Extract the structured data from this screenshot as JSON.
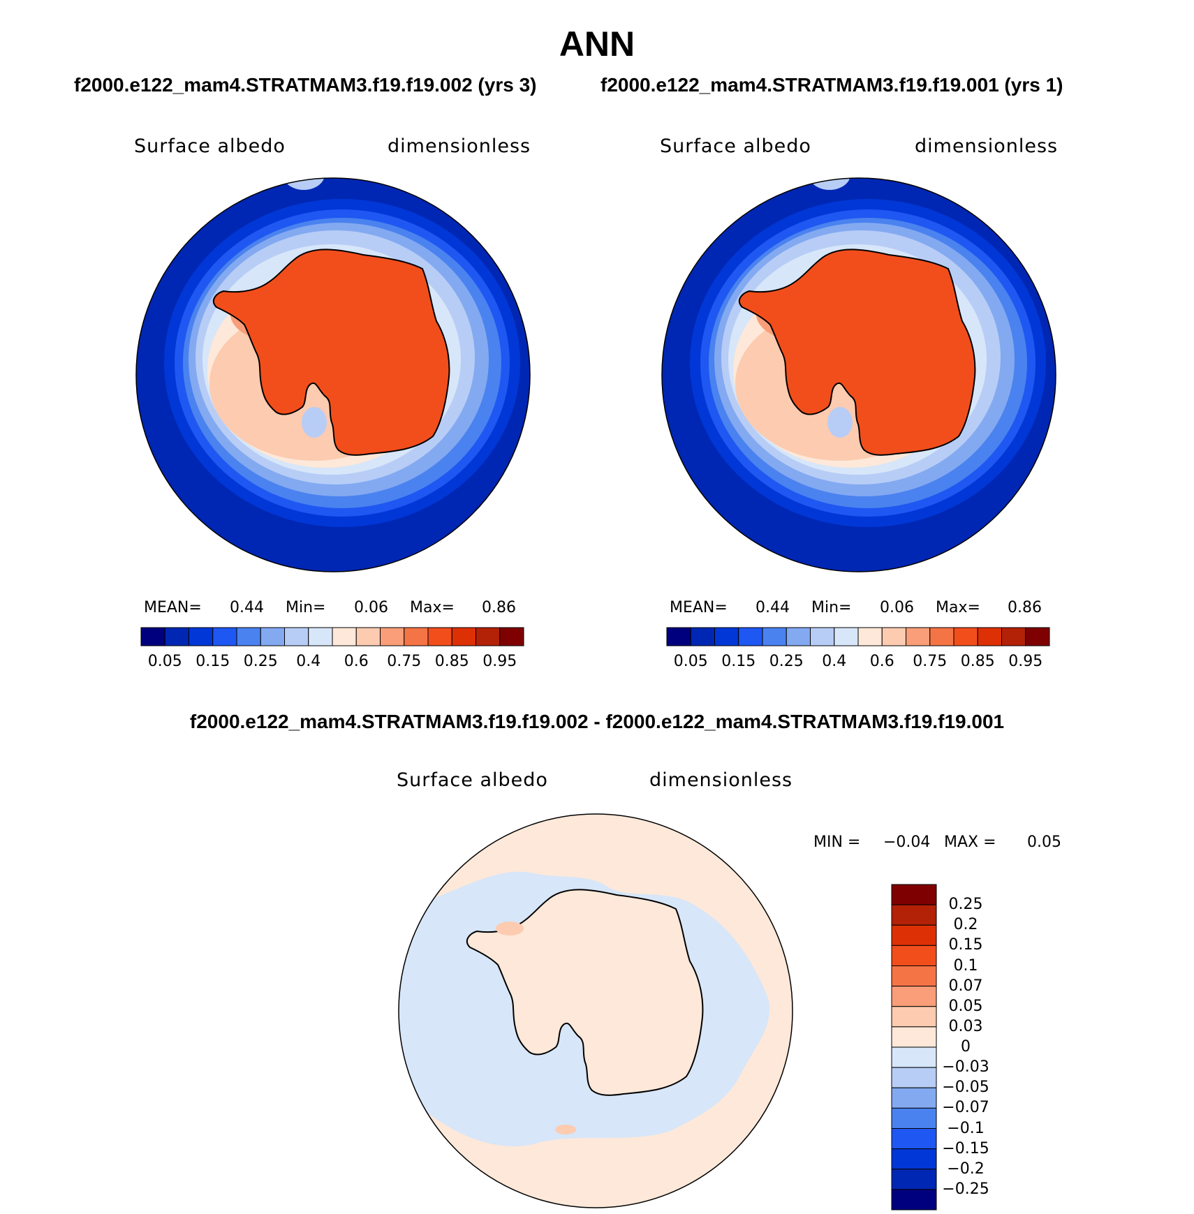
{
  "title": "ANN",
  "panels": [
    {
      "case_title": "f2000.e122_mam4.STRATMAM3.f19.f19.002 (yrs 3)",
      "variable": "Surface albedo",
      "units": "dimensionless",
      "stats": {
        "mean_label": "MEAN=",
        "mean": "0.44",
        "min_label": "Min=",
        "min": "0.06",
        "max_label": "Max=",
        "max": "0.86"
      }
    },
    {
      "case_title": "f2000.e122_mam4.STRATMAM3.f19.f19.001 (yrs 1)",
      "variable": "Surface albedo",
      "units": "dimensionless",
      "stats": {
        "mean_label": "MEAN=",
        "mean": "0.44",
        "min_label": "Min=",
        "min": "0.06",
        "max_label": "Max=",
        "max": "0.86"
      }
    }
  ],
  "colorbar": {
    "colors": [
      "#00007e",
      "#0027b3",
      "#0137d6",
      "#1f57f2",
      "#4a82ef",
      "#83a9f1",
      "#b7cdf6",
      "#d7e6f9",
      "#fde8d9",
      "#fccbb0",
      "#f99e78",
      "#f57446",
      "#f24e1c",
      "#dd3105",
      "#b32106",
      "#7f0000"
    ],
    "ticks": [
      "0.05",
      "0.15",
      "0.25",
      "0.4",
      "0.6",
      "0.75",
      "0.85",
      "0.95"
    ]
  },
  "difference": {
    "title": "f2000.e122_mam4.STRATMAM3.f19.f19.002 - f2000.e122_mam4.STRATMAM3.f19.f19.001",
    "variable": "Surface albedo",
    "units": "dimensionless",
    "stats": {
      "min_label": "MIN =",
      "min": "−0.04",
      "max_label": "MAX =",
      "max": "0.05"
    },
    "colorbar": {
      "colors": [
        "#7f0000",
        "#b32106",
        "#dd3105",
        "#f24e1c",
        "#f57446",
        "#f99e78",
        "#fccbb0",
        "#fde8d9",
        "#d7e6f9",
        "#b7cdf6",
        "#83a9f1",
        "#4a82ef",
        "#1f57f2",
        "#0137d6",
        "#0027b3",
        "#00007e"
      ],
      "ticks": [
        "0.25",
        "0.2",
        "0.15",
        "0.1",
        "0.07",
        "0.05",
        "0.03",
        "0",
        "−0.03",
        "−0.05",
        "−0.07",
        "−0.1",
        "−0.15",
        "−0.2",
        "−0.25"
      ]
    }
  },
  "map_colors": {
    "ocean": "#0027b3",
    "ice_edge": [
      "#0137d6",
      "#1f57f2",
      "#4a82ef",
      "#83a9f1",
      "#b7cdf6",
      "#d7e6f9"
    ],
    "sea_ice": [
      "#fde8d9",
      "#fccbb0",
      "#f99e78"
    ],
    "land": "#f24e1c",
    "diff_neg": "#d7e6f9",
    "diff_pos": "#fde8d9"
  }
}
